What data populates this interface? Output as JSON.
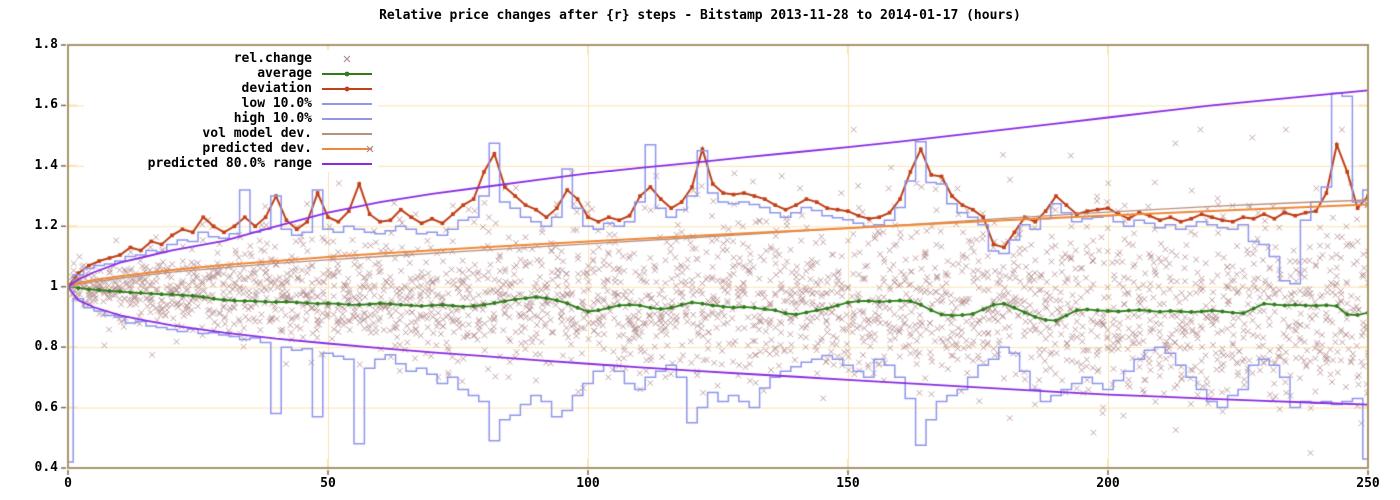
{
  "window": {
    "title": "Relative price changes after {r} steps - Bitstamp 2013-11-28 to 2014-01-17 (hours)"
  },
  "chart_data": {
    "type": "line",
    "title": "Relative price changes after {r} steps - Bitstamp 2013-11-28 to 2014-01-17 (hours)",
    "xlabel": "",
    "ylabel": "",
    "x_axis": {
      "range": [
        0,
        250
      ],
      "ticks": [
        0,
        50,
        100,
        150,
        200,
        250
      ],
      "tick_labels": [
        "0",
        "50",
        "100",
        "150",
        "200",
        "250"
      ]
    },
    "y_axis": {
      "range": [
        0.4,
        1.8
      ],
      "ticks": [
        0.4,
        0.6,
        0.8,
        1.0,
        1.2,
        1.4,
        1.6,
        1.8
      ],
      "tick_labels": [
        "0.4",
        "0.6",
        "0.8",
        "1",
        "1.2",
        "1.4",
        "1.6",
        "1.8"
      ]
    },
    "grid": true,
    "legend_position": "top-left",
    "colors": {
      "background": "#ffffff",
      "border": "#a99469",
      "grid": "#fbe3b0",
      "tick_out": "#7c6c4c",
      "text": "#000000",
      "scatter": "#b48d8d",
      "average": "#2e7d1a",
      "deviation": "#c04018",
      "low_high": "#8e96ea",
      "vol_model": "#b8907e",
      "predicted": "#ef8838",
      "range": "#8a2be2",
      "marker_x_end": "#ac8c80"
    },
    "scatter": {
      "name": "rel.change",
      "marker": "x",
      "color": "#b48d8d",
      "spec": {
        "seed": 7,
        "t_min": 1,
        "t_max": 250,
        "per_t": 12,
        "center_base": 1.0,
        "center_drop": 0.085,
        "center_pow": 0.9,
        "sigma_base": 0.016,
        "sigma_scale": 0.175,
        "outlier_rate": 0.05,
        "clamp": [
          0.45,
          1.52
        ]
      }
    },
    "series": [
      {
        "name": "average",
        "color": "#2e7d1a",
        "style": "linespoints-dot",
        "t_step": 2,
        "values": [
          1.0,
          0.996,
          0.992,
          0.989,
          0.986,
          0.984,
          0.981,
          0.979,
          0.977,
          0.975,
          0.974,
          0.972,
          0.97,
          0.966,
          0.96,
          0.956,
          0.954,
          0.953,
          0.952,
          0.95,
          0.949,
          0.95,
          0.948,
          0.946,
          0.944,
          0.945,
          0.943,
          0.941,
          0.94,
          0.942,
          0.945,
          0.943,
          0.94,
          0.938,
          0.936,
          0.938,
          0.94,
          0.937,
          0.934,
          0.936,
          0.94,
          0.946,
          0.952,
          0.958,
          0.962,
          0.966,
          0.962,
          0.955,
          0.945,
          0.93,
          0.918,
          0.922,
          0.93,
          0.938,
          0.94,
          0.938,
          0.93,
          0.926,
          0.93,
          0.94,
          0.948,
          0.944,
          0.938,
          0.934,
          0.931,
          0.933,
          0.93,
          0.926,
          0.922,
          0.912,
          0.908,
          0.915,
          0.922,
          0.928,
          0.938,
          0.948,
          0.952,
          0.953,
          0.95,
          0.952,
          0.954,
          0.952,
          0.94,
          0.922,
          0.908,
          0.905,
          0.906,
          0.91,
          0.925,
          0.94,
          0.944,
          0.93,
          0.915,
          0.9,
          0.89,
          0.888,
          0.905,
          0.922,
          0.925,
          0.922,
          0.92,
          0.918,
          0.921,
          0.923,
          0.92,
          0.917,
          0.92,
          0.918,
          0.916,
          0.918,
          0.921,
          0.918,
          0.914,
          0.912,
          0.928,
          0.944,
          0.941,
          0.938,
          0.94,
          0.938,
          0.937,
          0.939,
          0.936,
          0.908,
          0.906,
          0.914
        ]
      },
      {
        "name": "deviation",
        "color": "#c04018",
        "style": "linespoints-square",
        "t_step": 2,
        "values": [
          1.0,
          1.045,
          1.07,
          1.085,
          1.095,
          1.105,
          1.13,
          1.12,
          1.15,
          1.14,
          1.17,
          1.19,
          1.18,
          1.23,
          1.2,
          1.18,
          1.2,
          1.23,
          1.2,
          1.23,
          1.3,
          1.22,
          1.19,
          1.215,
          1.31,
          1.23,
          1.215,
          1.25,
          1.34,
          1.24,
          1.215,
          1.22,
          1.255,
          1.23,
          1.21,
          1.225,
          1.21,
          1.24,
          1.27,
          1.29,
          1.38,
          1.44,
          1.33,
          1.3,
          1.27,
          1.255,
          1.23,
          1.26,
          1.32,
          1.29,
          1.23,
          1.215,
          1.23,
          1.22,
          1.235,
          1.3,
          1.33,
          1.29,
          1.26,
          1.28,
          1.33,
          1.455,
          1.34,
          1.31,
          1.305,
          1.31,
          1.3,
          1.29,
          1.27,
          1.255,
          1.27,
          1.29,
          1.28,
          1.26,
          1.255,
          1.25,
          1.235,
          1.225,
          1.23,
          1.245,
          1.29,
          1.38,
          1.455,
          1.37,
          1.365,
          1.3,
          1.27,
          1.255,
          1.23,
          1.14,
          1.13,
          1.18,
          1.23,
          1.215,
          1.25,
          1.3,
          1.27,
          1.24,
          1.25,
          1.255,
          1.26,
          1.24,
          1.225,
          1.245,
          1.235,
          1.22,
          1.23,
          1.215,
          1.225,
          1.24,
          1.23,
          1.22,
          1.215,
          1.23,
          1.225,
          1.24,
          1.225,
          1.245,
          1.235,
          1.245,
          1.25,
          1.31,
          1.47,
          1.38,
          1.26,
          1.3
        ]
      },
      {
        "name": "low 10.0%",
        "color": "#8e96ea",
        "style": "histeps",
        "t_step": 2,
        "values": [
          0.42,
          0.96,
          0.93,
          0.92,
          0.905,
          0.9,
          0.88,
          0.885,
          0.87,
          0.865,
          0.858,
          0.852,
          0.86,
          0.845,
          0.848,
          0.84,
          0.835,
          0.825,
          0.83,
          0.815,
          0.58,
          0.8,
          0.79,
          0.795,
          0.57,
          0.78,
          0.77,
          0.76,
          0.48,
          0.73,
          0.76,
          0.775,
          0.745,
          0.72,
          0.73,
          0.71,
          0.68,
          0.7,
          0.66,
          0.64,
          0.62,
          0.49,
          0.56,
          0.575,
          0.61,
          0.64,
          0.62,
          0.57,
          0.59,
          0.64,
          0.68,
          0.72,
          0.74,
          0.72,
          0.68,
          0.66,
          0.7,
          0.72,
          0.74,
          0.7,
          0.55,
          0.6,
          0.65,
          0.62,
          0.64,
          0.62,
          0.6,
          0.665,
          0.7,
          0.72,
          0.735,
          0.75,
          0.76,
          0.772,
          0.76,
          0.74,
          0.72,
          0.7,
          0.76,
          0.74,
          0.7,
          0.63,
          0.475,
          0.56,
          0.62,
          0.64,
          0.66,
          0.7,
          0.74,
          0.76,
          0.8,
          0.78,
          0.72,
          0.66,
          0.62,
          0.64,
          0.66,
          0.68,
          0.7,
          0.68,
          0.66,
          0.69,
          0.72,
          0.76,
          0.79,
          0.8,
          0.78,
          0.74,
          0.7,
          0.66,
          0.62,
          0.6,
          0.64,
          0.66,
          0.74,
          0.76,
          0.74,
          0.7,
          0.6,
          0.62,
          0.615,
          0.62,
          0.61,
          0.62,
          0.63,
          0.43
        ]
      },
      {
        "name": "high 10.0%",
        "color": "#8e96ea",
        "style": "histeps",
        "t_step": 2,
        "values": [
          1.0,
          1.04,
          1.06,
          1.07,
          1.075,
          1.085,
          1.1,
          1.105,
          1.12,
          1.115,
          1.14,
          1.155,
          1.15,
          1.18,
          1.165,
          1.16,
          1.175,
          1.32,
          1.18,
          1.19,
          1.3,
          1.19,
          1.17,
          1.18,
          1.32,
          1.19,
          1.18,
          1.2,
          1.19,
          1.18,
          1.175,
          1.185,
          1.2,
          1.19,
          1.175,
          1.18,
          1.17,
          1.19,
          1.22,
          1.23,
          1.3,
          1.475,
          1.28,
          1.26,
          1.23,
          1.215,
          1.2,
          1.23,
          1.39,
          1.26,
          1.2,
          1.19,
          1.21,
          1.2,
          1.215,
          1.28,
          1.47,
          1.26,
          1.23,
          1.255,
          1.3,
          1.45,
          1.31,
          1.28,
          1.275,
          1.28,
          1.272,
          1.262,
          1.245,
          1.23,
          1.245,
          1.262,
          1.252,
          1.235,
          1.228,
          1.222,
          1.21,
          1.2,
          1.205,
          1.22,
          1.262,
          1.35,
          1.48,
          1.345,
          1.34,
          1.275,
          1.245,
          1.23,
          1.205,
          1.118,
          1.11,
          1.155,
          1.205,
          1.19,
          1.225,
          1.275,
          1.245,
          1.215,
          1.225,
          1.23,
          1.235,
          1.215,
          1.2,
          1.22,
          1.21,
          1.195,
          1.205,
          1.19,
          1.2,
          1.215,
          1.205,
          1.195,
          1.19,
          1.205,
          1.15,
          1.14,
          1.1,
          1.02,
          1.01,
          1.22,
          1.28,
          1.33,
          1.64,
          1.63,
          1.28,
          1.32
        ]
      },
      {
        "name": "vol model dev.",
        "color": "#b8907e",
        "style": "line",
        "points": [
          [
            0,
            1.0
          ],
          [
            5,
            1.016
          ],
          [
            10,
            1.028
          ],
          [
            20,
            1.048
          ],
          [
            30,
            1.063
          ],
          [
            40,
            1.077
          ],
          [
            50,
            1.089
          ],
          [
            60,
            1.1
          ],
          [
            80,
            1.121
          ],
          [
            100,
            1.142
          ],
          [
            120,
            1.162
          ],
          [
            140,
            1.183
          ],
          [
            160,
            1.204
          ],
          [
            180,
            1.226
          ],
          [
            200,
            1.247
          ],
          [
            220,
            1.266
          ],
          [
            235,
            1.277
          ],
          [
            250,
            1.287
          ]
        ]
      },
      {
        "name": "predicted dev.",
        "color": "#ef8838",
        "style": "line-x-end",
        "points": [
          [
            0,
            1.005
          ],
          [
            5,
            1.022
          ],
          [
            10,
            1.035
          ],
          [
            20,
            1.055
          ],
          [
            30,
            1.072
          ],
          [
            40,
            1.085
          ],
          [
            50,
            1.098
          ],
          [
            60,
            1.11
          ],
          [
            80,
            1.131
          ],
          [
            100,
            1.15
          ],
          [
            120,
            1.168
          ],
          [
            140,
            1.185
          ],
          [
            160,
            1.203
          ],
          [
            180,
            1.22
          ],
          [
            200,
            1.236
          ],
          [
            220,
            1.251
          ],
          [
            235,
            1.261
          ],
          [
            250,
            1.272
          ]
        ]
      },
      {
        "name": "predicted 80.0% range",
        "color": "#8a2be2",
        "style": "band-lines",
        "points_upper": [
          [
            0,
            1.0
          ],
          [
            2,
            1.025
          ],
          [
            5,
            1.048
          ],
          [
            10,
            1.08
          ],
          [
            15,
            1.1
          ],
          [
            20,
            1.12
          ],
          [
            30,
            1.152
          ],
          [
            40,
            1.2
          ],
          [
            50,
            1.245
          ],
          [
            60,
            1.28
          ],
          [
            70,
            1.307
          ],
          [
            80,
            1.33
          ],
          [
            90,
            1.353
          ],
          [
            100,
            1.375
          ],
          [
            110,
            1.393
          ],
          [
            120,
            1.41
          ],
          [
            130,
            1.428
          ],
          [
            140,
            1.445
          ],
          [
            150,
            1.462
          ],
          [
            160,
            1.48
          ],
          [
            170,
            1.5
          ],
          [
            180,
            1.52
          ],
          [
            190,
            1.54
          ],
          [
            200,
            1.56
          ],
          [
            210,
            1.58
          ],
          [
            220,
            1.6
          ],
          [
            230,
            1.617
          ],
          [
            240,
            1.633
          ],
          [
            250,
            1.65
          ]
        ],
        "points_lower": [
          [
            0,
            1.0
          ],
          [
            2,
            0.955
          ],
          [
            5,
            0.932
          ],
          [
            10,
            0.905
          ],
          [
            15,
            0.888
          ],
          [
            20,
            0.872
          ],
          [
            30,
            0.848
          ],
          [
            40,
            0.828
          ],
          [
            50,
            0.812
          ],
          [
            60,
            0.797
          ],
          [
            70,
            0.783
          ],
          [
            80,
            0.77
          ],
          [
            90,
            0.757
          ],
          [
            100,
            0.745
          ],
          [
            110,
            0.733
          ],
          [
            120,
            0.722
          ],
          [
            130,
            0.712
          ],
          [
            140,
            0.702
          ],
          [
            150,
            0.692
          ],
          [
            160,
            0.682
          ],
          [
            170,
            0.672
          ],
          [
            180,
            0.662
          ],
          [
            190,
            0.652
          ],
          [
            200,
            0.643
          ],
          [
            210,
            0.636
          ],
          [
            220,
            0.629
          ],
          [
            230,
            0.622
          ],
          [
            240,
            0.616
          ],
          [
            250,
            0.61
          ]
        ]
      }
    ],
    "legend": [
      {
        "label": "rel.change",
        "color": "#b48d8d",
        "sample": "point-x"
      },
      {
        "label": "average",
        "color": "#2e7d1a",
        "sample": "line-dot"
      },
      {
        "label": "deviation",
        "color": "#c04018",
        "sample": "line-dot"
      },
      {
        "label": "low 10.0%",
        "color": "#8e96ea",
        "sample": "line"
      },
      {
        "label": "high 10.0%",
        "color": "#8e96ea",
        "sample": "line"
      },
      {
        "label": "vol model dev.",
        "color": "#b8907e",
        "sample": "line"
      },
      {
        "label": "predicted dev.",
        "color": "#ef8838",
        "sample": "line-xend"
      },
      {
        "label": "predicted 80.0% range",
        "color": "#8a2be2",
        "sample": "line"
      }
    ]
  }
}
